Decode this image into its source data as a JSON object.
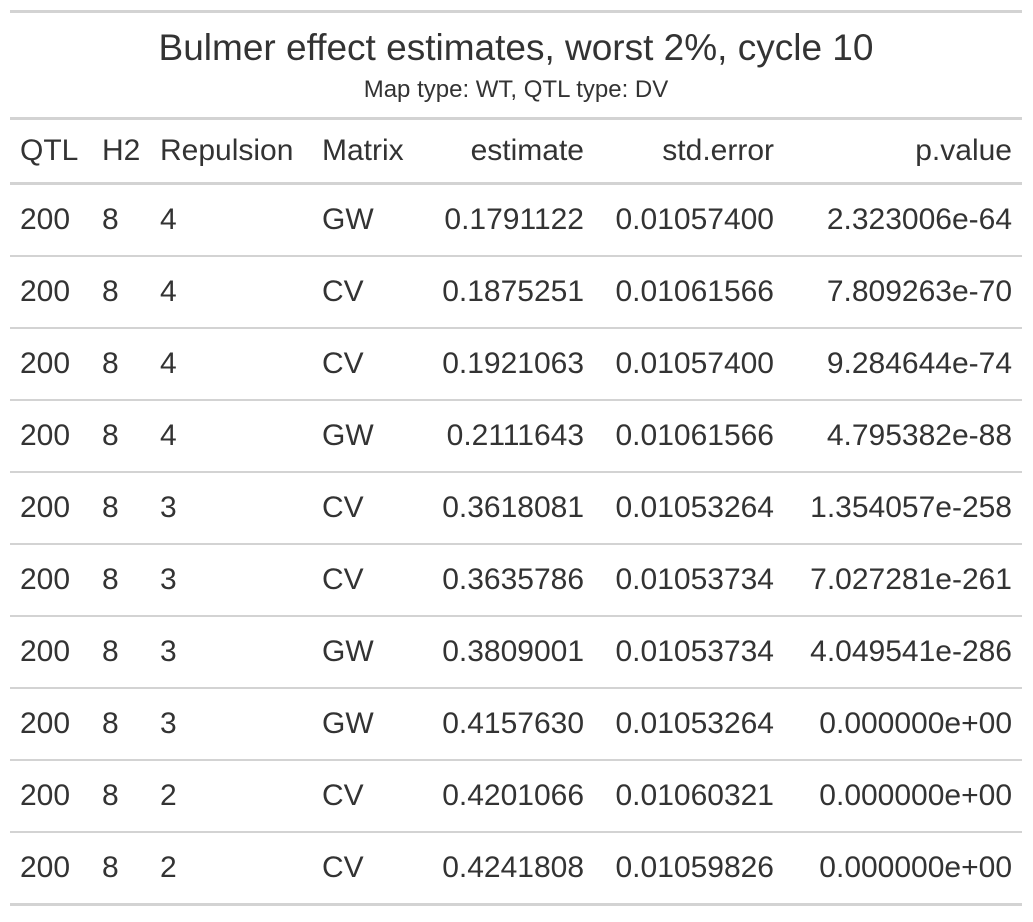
{
  "title": "Bulmer effect estimates, worst 2%, cycle 10",
  "subtitle": "Map type: WT, QTL type: DV",
  "columns": [
    "QTL",
    "H2",
    "Repulsion",
    "Matrix",
    "estimate",
    "std.error",
    "p.value"
  ],
  "rows": [
    [
      "200",
      "8",
      "4",
      "GW",
      "0.1791122",
      "0.01057400",
      "2.323006e-64"
    ],
    [
      "200",
      "8",
      "4",
      "CV",
      "0.1875251",
      "0.01061566",
      "7.809263e-70"
    ],
    [
      "200",
      "8",
      "4",
      "CV",
      "0.1921063",
      "0.01057400",
      "9.284644e-74"
    ],
    [
      "200",
      "8",
      "4",
      "GW",
      "0.2111643",
      "0.01061566",
      "4.795382e-88"
    ],
    [
      "200",
      "8",
      "3",
      "CV",
      "0.3618081",
      "0.01053264",
      "1.354057e-258"
    ],
    [
      "200",
      "8",
      "3",
      "CV",
      "0.3635786",
      "0.01053734",
      "7.027281e-261"
    ],
    [
      "200",
      "8",
      "3",
      "GW",
      "0.3809001",
      "0.01053734",
      "4.049541e-286"
    ],
    [
      "200",
      "8",
      "3",
      "GW",
      "0.4157630",
      "0.01053264",
      "0.000000e+00"
    ],
    [
      "200",
      "8",
      "2",
      "CV",
      "0.4201066",
      "0.01060321",
      "0.000000e+00"
    ],
    [
      "200",
      "8",
      "2",
      "CV",
      "0.4241808",
      "0.01059826",
      "0.000000e+00"
    ]
  ],
  "colors": {
    "text": "#333333",
    "rule": "#d3d3d3",
    "background": "#ffffff"
  }
}
